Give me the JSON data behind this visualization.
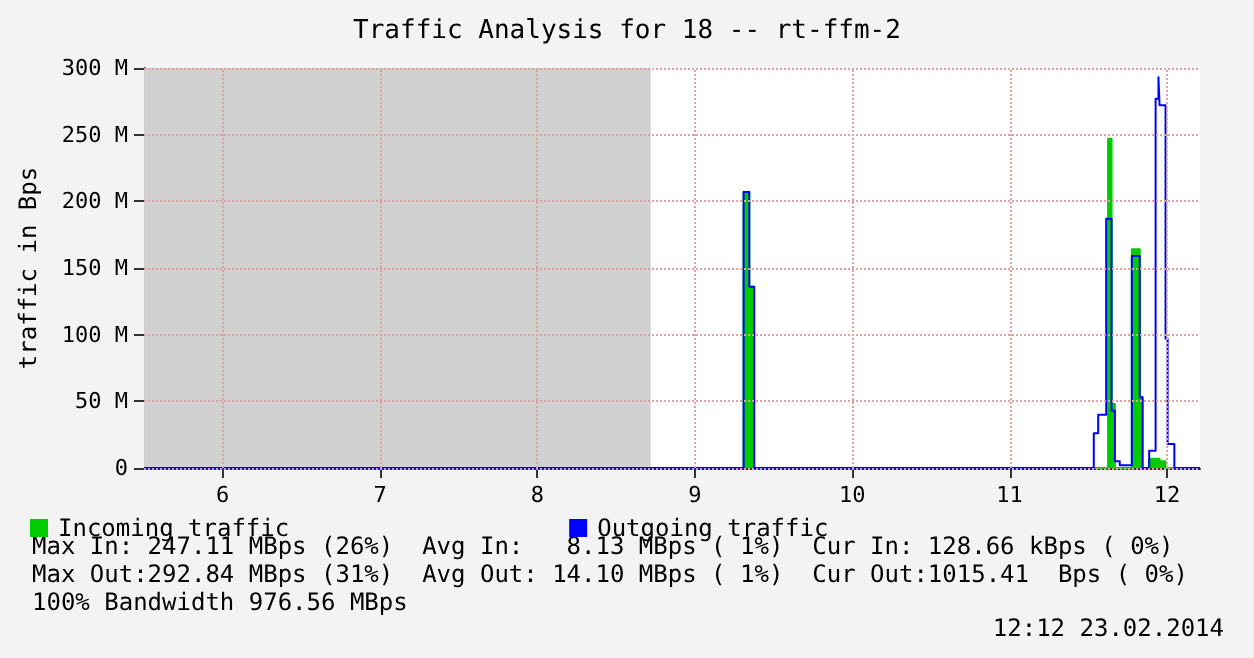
{
  "chart_data": {
    "type": "step",
    "title": "Traffic Analysis for 18 -- rt-ffm-2",
    "ylabel": "traffic in Bps",
    "xlim": [
      5.5,
      12.21
    ],
    "xticks": [
      6,
      7,
      8,
      9,
      10,
      11,
      12
    ],
    "ylim": [
      0,
      300
    ],
    "yticks": [
      0,
      {
        "value": 50,
        "label": "50 M"
      },
      {
        "value": 100,
        "label": "100 M"
      },
      {
        "value": 150,
        "label": "150 M"
      },
      {
        "value": 200,
        "label": "200 M"
      },
      {
        "value": 250,
        "label": "250 M"
      },
      {
        "value": 300,
        "label": "300 M"
      }
    ],
    "grid": true,
    "legend": "bottom",
    "bands": [
      {
        "axis": "x",
        "from": 5.5,
        "to": 8.72,
        "color": "#d0d0d0"
      }
    ],
    "series": [
      {
        "name": "Incoming traffic",
        "type": "area",
        "color": "#00cc00",
        "x": [
          5.5,
          9.31,
          9.346,
          9.377,
          11.626,
          11.648,
          11.669,
          11.777,
          11.827,
          11.845,
          11.887,
          11.953,
          11.991,
          12.21
        ],
        "values": [
          0,
          207,
          136,
          0,
          247,
          48,
          0,
          164,
          53,
          0,
          7,
          5,
          0,
          0
        ]
      },
      {
        "name": "Outgoing traffic",
        "type": "step",
        "color": "#0000ff",
        "x": [
          5.5,
          9.31,
          9.346,
          9.377,
          11.535,
          11.563,
          11.614,
          11.648,
          11.669,
          11.7,
          11.777,
          11.827,
          11.845,
          11.887,
          11.928,
          11.946,
          11.953,
          11.991,
          12.004,
          12.047,
          12.21
        ],
        "values": [
          0,
          207,
          136,
          0,
          26,
          40,
          187,
          43,
          5,
          2,
          159,
          53,
          0,
          13,
          277,
          293,
          272,
          97,
          18,
          0,
          0
        ]
      }
    ],
    "annotations": [
      "Max In: 247.11 MBps (26%)  Avg In:   8.13 MBps ( 1%)  Cur In: 128.66 kBps ( 0%)",
      "Max Out:292.84 MBps (31%)  Avg Out: 14.10 MBps ( 1%)  Cur Out:1015.41  Bps ( 0%)",
      "100% Bandwidth 976.56 MBps",
      "12:12 23.02.2014"
    ]
  }
}
